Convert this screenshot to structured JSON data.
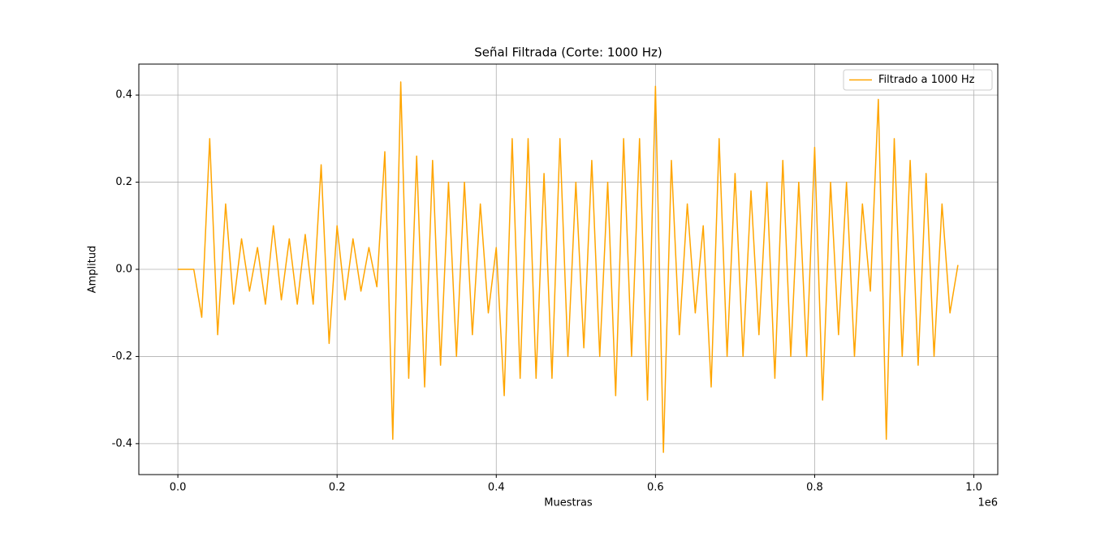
{
  "chart_data": {
    "type": "line",
    "title": "Señal Filtrada (Corte: 1000 Hz)",
    "x_label": "Muestras",
    "y_label": "Amplitud",
    "x_offset_label": "1e6",
    "x": [
      0,
      10000,
      20000,
      30000,
      40000,
      50000,
      60000,
      70000,
      80000,
      90000,
      100000,
      110000,
      120000,
      130000,
      140000,
      150000,
      160000,
      170000,
      180000,
      190000,
      200000,
      210000,
      220000,
      230000,
      240000,
      250000,
      260000,
      270000,
      280000,
      290000,
      300000,
      310000,
      320000,
      330000,
      340000,
      350000,
      360000,
      370000,
      380000,
      390000,
      400000,
      410000,
      420000,
      430000,
      440000,
      450000,
      460000,
      470000,
      480000,
      490000,
      500000,
      510000,
      520000,
      530000,
      540000,
      550000,
      560000,
      570000,
      580000,
      590000,
      600000,
      610000,
      620000,
      630000,
      640000,
      650000,
      660000,
      670000,
      680000,
      690000,
      700000,
      710000,
      720000,
      730000,
      740000,
      750000,
      760000,
      770000,
      780000,
      790000,
      800000,
      810000,
      820000,
      830000,
      840000,
      850000,
      860000,
      870000,
      880000,
      890000,
      900000,
      910000,
      920000,
      930000,
      940000,
      950000,
      960000,
      970000,
      980000
    ],
    "series": [
      {
        "name": "Filtrado a 1000 Hz",
        "color": "#ffa500",
        "values": [
          0,
          0,
          0,
          -0.11,
          0.3,
          -0.15,
          0.15,
          -0.08,
          0.07,
          -0.05,
          0.05,
          -0.08,
          0.1,
          -0.07,
          0.07,
          -0.08,
          0.08,
          -0.08,
          0.24,
          -0.17,
          0.1,
          -0.07,
          0.07,
          -0.05,
          0.05,
          -0.04,
          0.27,
          -0.39,
          0.43,
          -0.25,
          0.26,
          -0.27,
          0.25,
          -0.22,
          0.2,
          -0.2,
          0.2,
          -0.15,
          0.15,
          -0.1,
          0.05,
          -0.29,
          0.3,
          -0.25,
          0.3,
          -0.25,
          0.22,
          -0.25,
          0.3,
          -0.2,
          0.2,
          -0.18,
          0.25,
          -0.2,
          0.2,
          -0.29,
          0.3,
          -0.2,
          0.3,
          -0.3,
          0.42,
          -0.42,
          0.25,
          -0.15,
          0.15,
          -0.1,
          0.1,
          -0.27,
          0.3,
          -0.2,
          0.22,
          -0.2,
          0.18,
          -0.15,
          0.2,
          -0.25,
          0.25,
          -0.2,
          0.2,
          -0.2,
          0.28,
          -0.3,
          0.2,
          -0.15,
          0.2,
          -0.2,
          0.15,
          -0.05,
          0.39,
          -0.39,
          0.3,
          -0.2,
          0.25,
          -0.22,
          0.22,
          -0.2,
          0.15,
          -0.1,
          0.01
        ]
      }
    ],
    "xlim": [
      -49050,
      1030050
    ],
    "ylim": [
      -0.471,
      0.471
    ],
    "xticks": [
      {
        "value": 0,
        "label": "0.0"
      },
      {
        "value": 200000,
        "label": "0.2"
      },
      {
        "value": 400000,
        "label": "0.4"
      },
      {
        "value": 600000,
        "label": "0.6"
      },
      {
        "value": 800000,
        "label": "0.8"
      },
      {
        "value": 1000000,
        "label": "1.0"
      }
    ],
    "yticks": [
      -0.4,
      -0.2,
      {
        "value": 0,
        "label": "0.0"
      },
      0.2,
      0.4
    ],
    "grid": true,
    "legend": "upper right"
  }
}
